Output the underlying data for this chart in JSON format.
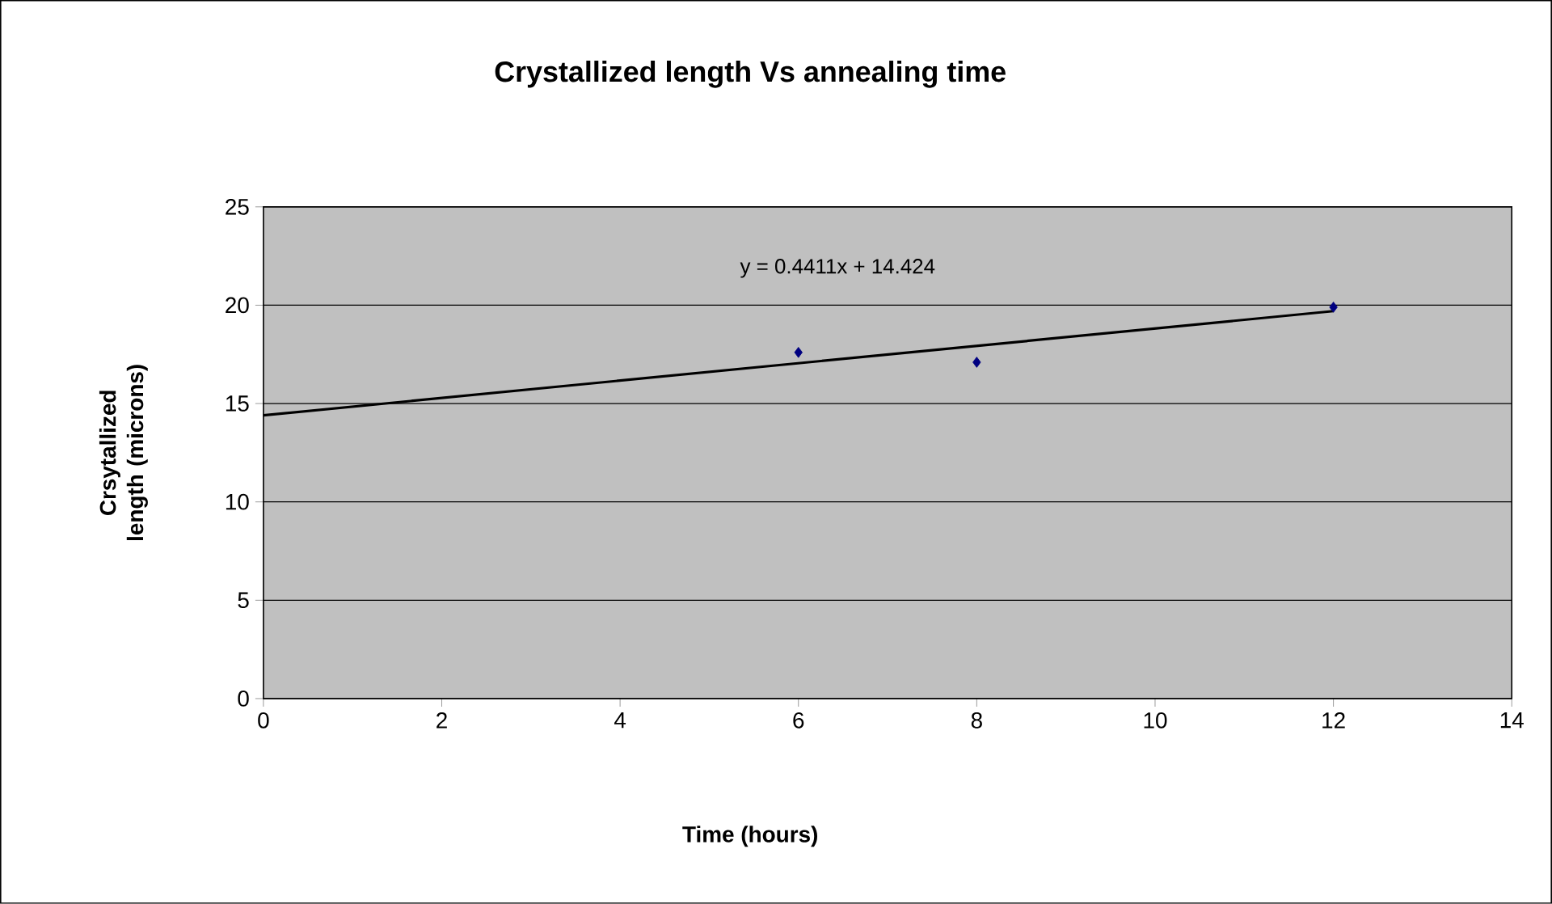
{
  "chart_data": {
    "type": "scatter",
    "title": "Crystallized length Vs annealing time",
    "xlabel": "Time  (hours)",
    "ylabel": "Crsytallized length (microns)",
    "xlim": [
      0,
      14
    ],
    "xticks": [
      0,
      2,
      4,
      6,
      8,
      10,
      12,
      14
    ],
    "ylim": [
      0,
      25
    ],
    "yticks": [
      0,
      5,
      10,
      15,
      20,
      25
    ],
    "grid": "y",
    "marker": "diamond",
    "series": [
      {
        "color": "#000080",
        "x": [
          6,
          8,
          12
        ],
        "values": [
          17.6,
          17.1,
          19.9
        ]
      },
      {
        "type": "line",
        "color": "#000000",
        "marker": "none",
        "x": [
          0,
          12
        ],
        "values": [
          14.4,
          19.7
        ]
      }
    ],
    "annotations": [
      "y = 0.4411x + 14.424"
    ]
  }
}
